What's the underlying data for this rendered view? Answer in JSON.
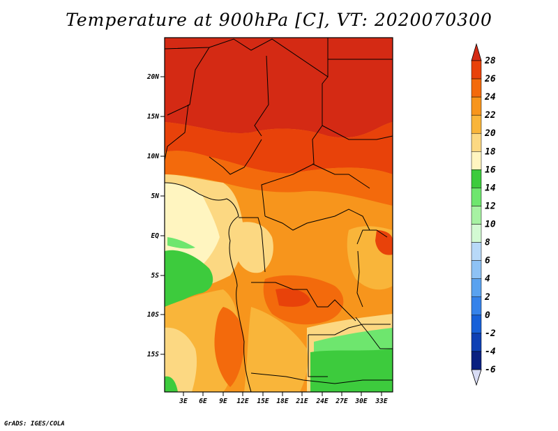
{
  "title": "Temperature at 900hPa [C], VT: 2020070300",
  "credit": "GrADS: IGES/COLA",
  "map": {
    "lat_ticks": [
      "20N",
      "15N",
      "10N",
      "5N",
      "EQ",
      "5S",
      "10S",
      "15S"
    ],
    "lon_ticks": [
      "3E",
      "6E",
      "9E",
      "12E",
      "15E",
      "18E",
      "21E",
      "24E",
      "27E",
      "30E",
      "33E"
    ]
  },
  "colorbar": {
    "levels": [
      "28",
      "26",
      "24",
      "22",
      "20",
      "18",
      "16",
      "14",
      "12",
      "10",
      "8",
      "6",
      "4",
      "2",
      "0",
      "-2",
      "-4",
      "-6"
    ],
    "colors": [
      "#d42a14",
      "#e8420a",
      "#f36a0c",
      "#f7951c",
      "#f9b53a",
      "#fcd882",
      "#fff5c0",
      "#3dcb3d",
      "#6ee66e",
      "#a7f2a3",
      "#d3fad3",
      "#b8d9f8",
      "#8ec2f5",
      "#5aa2ef",
      "#3582ea",
      "#1760d8",
      "#0e40b4",
      "#0a2080",
      "#000a50"
    ]
  }
}
